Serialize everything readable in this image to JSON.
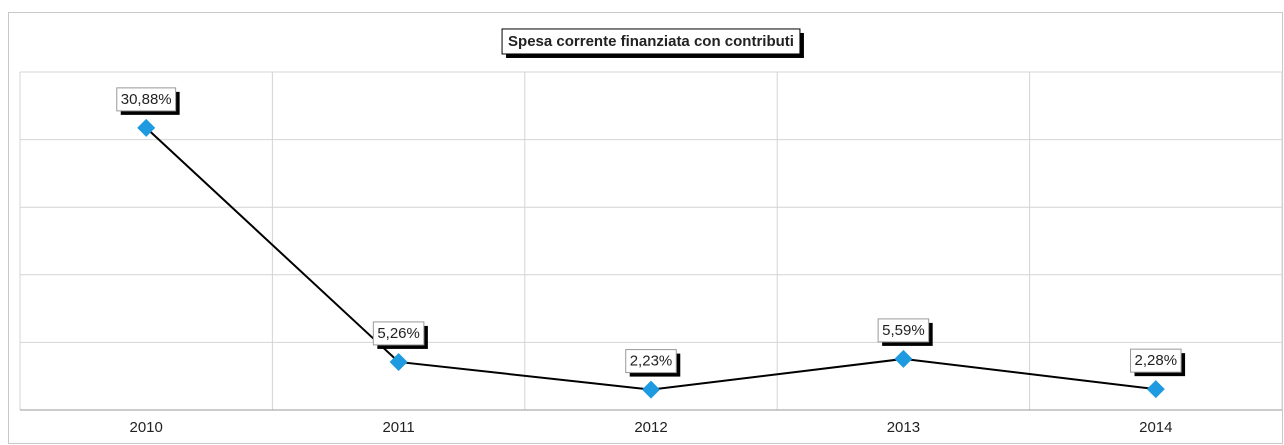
{
  "chart_data": {
    "type": "line",
    "title": "Spesa corrente finanziata con contributi",
    "categories": [
      "2010",
      "2011",
      "2012",
      "2013",
      "2014"
    ],
    "series": [
      {
        "name": "Spesa corrente finanziata con contributi",
        "color": "#1e9be0",
        "line_color": "#000000",
        "values": [
          30.88,
          5.26,
          2.23,
          5.59,
          2.28
        ],
        "value_labels": [
          "30,88%",
          "5,26%",
          "2,23%",
          "5,59%",
          "2,28%"
        ]
      }
    ],
    "ylim": [
      0,
      37
    ],
    "yticks": [
      0,
      7.4,
      14.8,
      22.2,
      29.6,
      37
    ],
    "grid": true
  }
}
